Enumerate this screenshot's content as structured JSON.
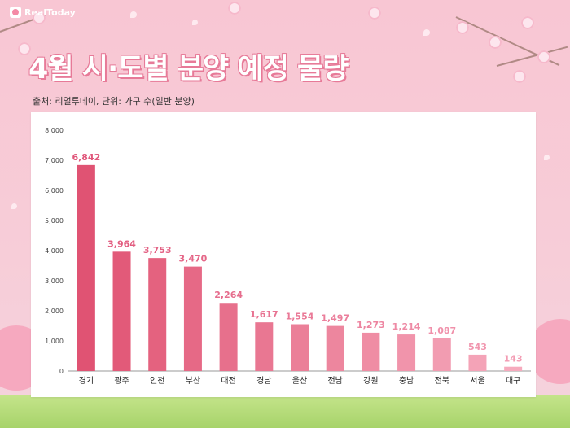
{
  "brand": {
    "logo_text": "RealToday"
  },
  "header": {
    "title": "4월 시·도별 분양 예정 물량",
    "source": "출처: 리얼투데이, 단위: 가구 수(일반 분양)"
  },
  "colors": {
    "background": "#f7cdd8",
    "bar_dark": "#e05373",
    "bar_light": "#f6aabd",
    "title_outline": "#e77a98",
    "label_dark": "#e0567a",
    "label_light": "#f39bb3"
  },
  "chart_data": {
    "type": "bar",
    "title": "4월 시·도별 분양 예정 물량",
    "xlabel": "",
    "ylabel": "",
    "ylim": [
      0,
      8000
    ],
    "yticks": [
      0,
      1000,
      2000,
      3000,
      4000,
      5000,
      6000,
      7000,
      8000
    ],
    "ytick_labels": [
      "0",
      "1,000",
      "2,000",
      "3,000",
      "4,000",
      "5,000",
      "6,000",
      "7,000",
      "8,000"
    ],
    "grid": true,
    "legend": "none",
    "categories": [
      "경기",
      "광주",
      "인천",
      "부산",
      "대전",
      "경남",
      "울산",
      "전남",
      "강원",
      "충남",
      "전북",
      "서울",
      "대구"
    ],
    "values": [
      6842,
      3964,
      3753,
      3470,
      2264,
      1617,
      1554,
      1497,
      1273,
      1214,
      1087,
      543,
      143
    ],
    "value_labels": [
      "6,842",
      "3,964",
      "3,753",
      "3,470",
      "2,264",
      "1,617",
      "1,554",
      "1,497",
      "1,273",
      "1,214",
      "1,087",
      "543",
      "143"
    ]
  }
}
